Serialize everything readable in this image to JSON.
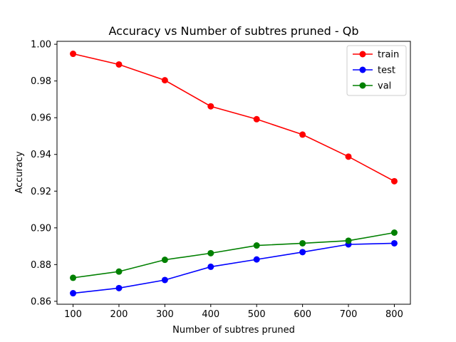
{
  "chart_data": {
    "type": "line",
    "title": "Accuracy vs Number of subtres pruned - Qb",
    "xlabel": "Number of subtres pruned",
    "ylabel": "Accuracy",
    "x": [
      100,
      200,
      300,
      400,
      500,
      600,
      700,
      800
    ],
    "xticks": [
      "100",
      "200",
      "300",
      "400",
      "500",
      "600",
      "700",
      "800"
    ],
    "yticks": [
      "0.86",
      "0.88",
      "0.90",
      "0.92",
      "0.94",
      "0.96",
      "0.98",
      "1.00"
    ],
    "xlim": [
      65,
      835
    ],
    "ylim": [
      0.8584,
      1.0016
    ],
    "grid": false,
    "legend_position": "upper right",
    "series": [
      {
        "name": "train",
        "color": "#ff0000",
        "marker": "circle",
        "values": [
          0.9948,
          0.989,
          0.9804,
          0.9662,
          0.9592,
          0.9508,
          0.9388,
          0.9254
        ]
      },
      {
        "name": "test",
        "color": "#0000ff",
        "marker": "circle",
        "values": [
          0.8644,
          0.8672,
          0.8716,
          0.8788,
          0.8828,
          0.8868,
          0.891,
          0.8916
        ]
      },
      {
        "name": "val",
        "color": "#008000",
        "marker": "circle",
        "values": [
          0.8728,
          0.8762,
          0.8826,
          0.8862,
          0.8904,
          0.8916,
          0.893,
          0.8974
        ]
      }
    ]
  }
}
